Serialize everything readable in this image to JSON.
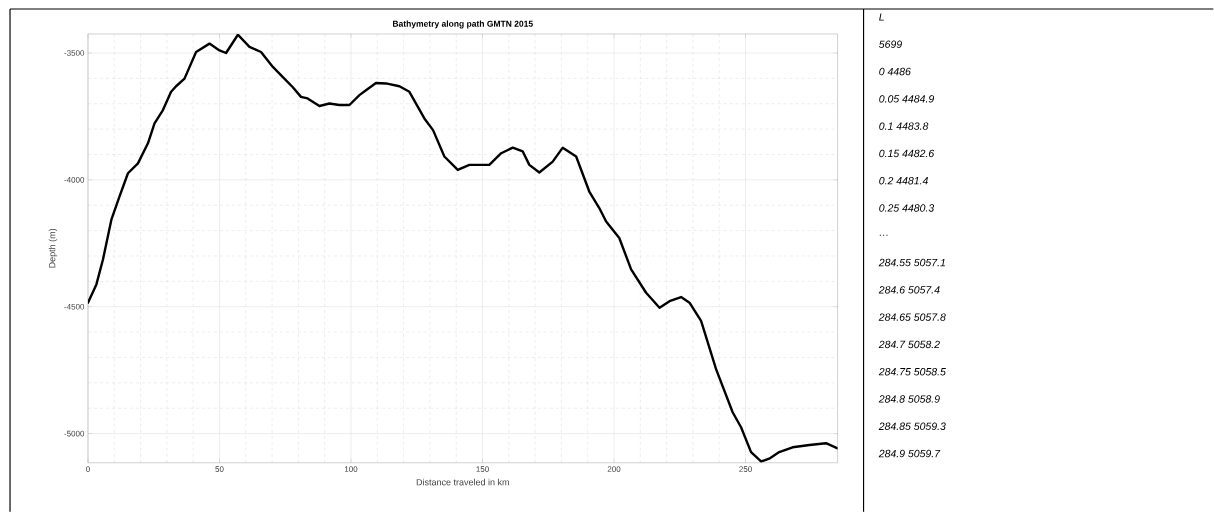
{
  "chart_data": [
    {
      "type": "line",
      "title": "Bathymetry along path GMTN 2015",
      "xlabel": "Distance traveled in km",
      "ylabel": "Depth (m)",
      "xlim": [
        0,
        285
      ],
      "ylim": [
        -5115,
        -3425
      ],
      "xticks": [
        0,
        50,
        100,
        150,
        200,
        250
      ],
      "yticks": [
        -5000,
        -4500,
        -4000,
        -3500
      ],
      "grid": true,
      "marker": "none",
      "line_style": "solid",
      "series": [
        {
          "color": "#000000",
          "x": [
            0,
            3.2,
            5.7,
            8.9,
            12,
            15.2,
            19,
            22.8,
            25.3,
            28.5,
            31.6,
            33.5,
            36.7,
            41.1,
            46.2,
            50,
            52.5,
            57,
            61.4,
            65.8,
            70.3,
            74,
            77.8,
            81,
            83.5,
            88,
            91.8,
            95.6,
            99.4,
            103.2,
            105.7,
            109.5,
            113.3,
            118.4,
            122.2,
            127.9,
            131.2,
            135.5,
            140.6,
            145,
            152.6,
            157.1,
            161.5,
            165.3,
            167.8,
            171.6,
            176.7,
            180.5,
            185.6,
            190.6,
            194.4,
            197,
            202,
            206.5,
            212.2,
            217.3,
            221.1,
            225.5,
            228.7,
            233.1,
            238.8,
            245.1,
            248.3,
            252.1,
            255.9,
            259,
            262.8,
            267.9,
            274.3,
            280.6,
            285
          ],
          "values": [
            -4484,
            -4412,
            -4314,
            -4157,
            -4065,
            -3974,
            -3935,
            -3856,
            -3777,
            -3725,
            -3653,
            -3631,
            -3601,
            -3496,
            -3463,
            -3490,
            -3500,
            -3428,
            -3476,
            -3496,
            -3555,
            -3594,
            -3634,
            -3673,
            -3679,
            -3709,
            -3699,
            -3705,
            -3705,
            -3666,
            -3647,
            -3618,
            -3620,
            -3631,
            -3653,
            -3758,
            -3804,
            -3908,
            -3961,
            -3941,
            -3941,
            -3895,
            -3873,
            -3888,
            -3941,
            -3971,
            -3928,
            -3873,
            -3908,
            -4046,
            -4111,
            -4164,
            -4229,
            -4353,
            -4445,
            -4504,
            -4478,
            -4462,
            -4484,
            -4556,
            -4746,
            -4916,
            -4975,
            -5073,
            -5110,
            -5099,
            -5073,
            -5054,
            -5045,
            -5038,
            -5058
          ]
        }
      ]
    },
    {
      "type": "other",
      "annotations": [
        "*L*",
        "*5699*",
        "*0 4486*",
        "*0.05 4484.9*",
        "*0.1 4483.8*",
        "*0.15 4482.6*",
        "*0.2 4481.4*",
        "*0.25 4480.3*",
        "*…*",
        "*284.55 5057.1*",
        "*284.6 5057.4*",
        "*284.65 5057.8*",
        "*284.7 5058.2*",
        "*284.75 5058.5*",
        "*284.8 5058.9*",
        "*284.85 5059.3*",
        "*284.9 5059.7*"
      ]
    }
  ]
}
